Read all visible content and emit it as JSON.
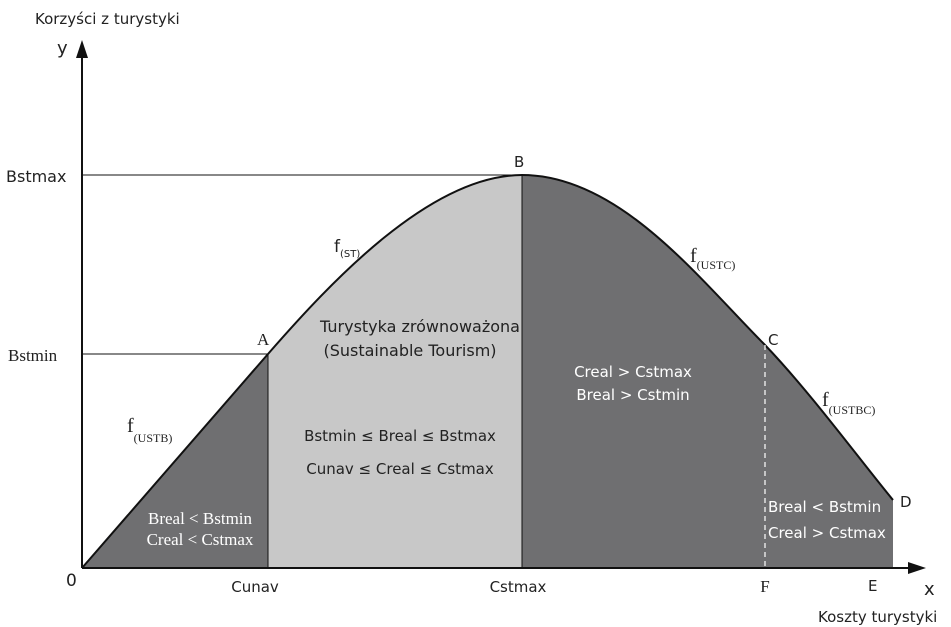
{
  "axes": {
    "y_title": "Korzyści z turystyki",
    "y_label": "y",
    "x_title": "Koszty turystyki",
    "x_label": "x",
    "origin": "0"
  },
  "y_levels": [
    "Bstmax",
    "Bstmin"
  ],
  "x_levels": [
    "Cunav",
    "Cstmax",
    "F",
    "E"
  ],
  "points": [
    "A",
    "B",
    "C",
    "D"
  ],
  "functions": [
    {
      "name": "f",
      "subscript": "(USTB)"
    },
    {
      "name": "f",
      "subscript": "(ST)"
    },
    {
      "name": "f",
      "subscript": "(USTC)"
    },
    {
      "name": "f",
      "subscript": "(USTBC)"
    }
  ],
  "regions": [
    {
      "lines": [
        "Breal < Bstmin",
        "Creal < Cstmax"
      ]
    },
    {
      "title": [
        "Turystyka zrównoważona",
        "(Sustainable Tourism)"
      ],
      "lines": [
        "Bstmin ≤ Breal ≤ Bstmax",
        "Cunav ≤ Creal ≤ Cstmax"
      ]
    },
    {
      "lines": [
        "Creal > Cstmax",
        "Breal > Cstmin"
      ]
    },
    {
      "lines": [
        "Breal < Bstmin",
        "Creal > Cstmax"
      ]
    }
  ]
}
